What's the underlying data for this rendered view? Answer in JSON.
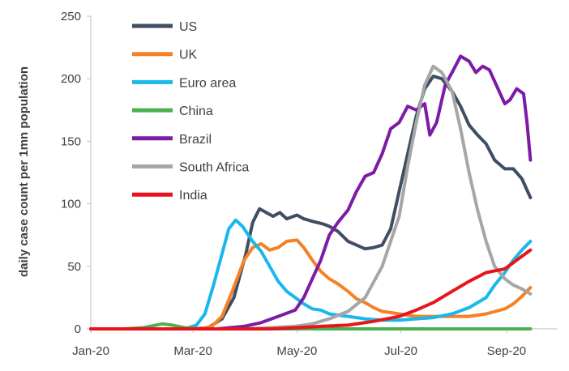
{
  "chart_data": {
    "type": "line",
    "title": "",
    "xlabel": "",
    "ylabel": "daily case count per 1mn population",
    "ylim": [
      0,
      250
    ],
    "yticks": [
      0,
      50,
      100,
      150,
      200,
      250
    ],
    "x_range": [
      "2020-01-01",
      "2020-10-01"
    ],
    "xticks": [
      {
        "date": "2020-01-01",
        "label": "Jan-20"
      },
      {
        "date": "2020-03-01",
        "label": "Mar-20"
      },
      {
        "date": "2020-05-01",
        "label": "May-20"
      },
      {
        "date": "2020-07-01",
        "label": "Jul-20"
      },
      {
        "date": "2020-09-01",
        "label": "Sep-20"
      }
    ],
    "grid": false,
    "legend_position": "top-left",
    "series": [
      {
        "name": "US",
        "color": "#3f4e63",
        "points": [
          [
            "2020-01-01",
            0
          ],
          [
            "2020-03-01",
            0
          ],
          [
            "2020-03-10",
            1
          ],
          [
            "2020-03-18",
            8
          ],
          [
            "2020-03-25",
            25
          ],
          [
            "2020-04-01",
            60
          ],
          [
            "2020-04-05",
            85
          ],
          [
            "2020-04-09",
            96
          ],
          [
            "2020-04-13",
            93
          ],
          [
            "2020-04-17",
            90
          ],
          [
            "2020-04-21",
            93
          ],
          [
            "2020-04-25",
            88
          ],
          [
            "2020-05-01",
            91
          ],
          [
            "2020-05-05",
            88
          ],
          [
            "2020-05-10",
            86
          ],
          [
            "2020-05-16",
            84
          ],
          [
            "2020-05-20",
            82
          ],
          [
            "2020-05-25",
            78
          ],
          [
            "2020-05-31",
            70
          ],
          [
            "2020-06-05",
            67
          ],
          [
            "2020-06-10",
            64
          ],
          [
            "2020-06-15",
            65
          ],
          [
            "2020-06-20",
            67
          ],
          [
            "2020-06-25",
            80
          ],
          [
            "2020-06-30",
            110
          ],
          [
            "2020-07-05",
            140
          ],
          [
            "2020-07-10",
            170
          ],
          [
            "2020-07-15",
            192
          ],
          [
            "2020-07-20",
            202
          ],
          [
            "2020-07-25",
            200
          ],
          [
            "2020-07-31",
            190
          ],
          [
            "2020-08-05",
            178
          ],
          [
            "2020-08-10",
            163
          ],
          [
            "2020-08-15",
            155
          ],
          [
            "2020-08-20",
            148
          ],
          [
            "2020-08-25",
            135
          ],
          [
            "2020-08-31",
            128
          ],
          [
            "2020-09-05",
            128
          ],
          [
            "2020-09-10",
            120
          ],
          [
            "2020-09-15",
            105
          ]
        ]
      },
      {
        "name": "UK",
        "color": "#f58125",
        "points": [
          [
            "2020-01-01",
            0
          ],
          [
            "2020-03-05",
            0
          ],
          [
            "2020-03-12",
            2
          ],
          [
            "2020-03-18",
            10
          ],
          [
            "2020-03-24",
            30
          ],
          [
            "2020-03-31",
            55
          ],
          [
            "2020-04-05",
            65
          ],
          [
            "2020-04-10",
            68
          ],
          [
            "2020-04-15",
            63
          ],
          [
            "2020-04-20",
            65
          ],
          [
            "2020-04-25",
            70
          ],
          [
            "2020-05-01",
            71
          ],
          [
            "2020-05-05",
            65
          ],
          [
            "2020-05-10",
            55
          ],
          [
            "2020-05-15",
            46
          ],
          [
            "2020-05-20",
            40
          ],
          [
            "2020-05-25",
            36
          ],
          [
            "2020-05-31",
            30
          ],
          [
            "2020-06-05",
            24
          ],
          [
            "2020-06-10",
            21
          ],
          [
            "2020-06-15",
            17
          ],
          [
            "2020-06-20",
            14
          ],
          [
            "2020-06-25",
            13
          ],
          [
            "2020-06-30",
            12
          ],
          [
            "2020-07-10",
            10
          ],
          [
            "2020-07-20",
            10
          ],
          [
            "2020-07-31",
            10
          ],
          [
            "2020-08-10",
            10
          ],
          [
            "2020-08-20",
            12
          ],
          [
            "2020-08-31",
            16
          ],
          [
            "2020-09-05",
            20
          ],
          [
            "2020-09-10",
            26
          ],
          [
            "2020-09-15",
            33
          ]
        ]
      },
      {
        "name": "Euro area",
        "color": "#19b8ea",
        "points": [
          [
            "2020-01-01",
            0
          ],
          [
            "2020-02-25",
            0
          ],
          [
            "2020-03-03",
            3
          ],
          [
            "2020-03-08",
            12
          ],
          [
            "2020-03-13",
            35
          ],
          [
            "2020-03-18",
            60
          ],
          [
            "2020-03-22",
            80
          ],
          [
            "2020-03-26",
            87
          ],
          [
            "2020-03-30",
            82
          ],
          [
            "2020-04-05",
            70
          ],
          [
            "2020-04-10",
            62
          ],
          [
            "2020-04-15",
            50
          ],
          [
            "2020-04-20",
            38
          ],
          [
            "2020-04-25",
            30
          ],
          [
            "2020-04-30",
            25
          ],
          [
            "2020-05-05",
            20
          ],
          [
            "2020-05-10",
            16
          ],
          [
            "2020-05-15",
            15
          ],
          [
            "2020-05-20",
            12
          ],
          [
            "2020-05-31",
            10
          ],
          [
            "2020-06-10",
            8
          ],
          [
            "2020-06-20",
            7
          ],
          [
            "2020-06-30",
            7
          ],
          [
            "2020-07-10",
            8
          ],
          [
            "2020-07-20",
            9
          ],
          [
            "2020-07-31",
            12
          ],
          [
            "2020-08-10",
            17
          ],
          [
            "2020-08-20",
            25
          ],
          [
            "2020-08-25",
            35
          ],
          [
            "2020-08-31",
            45
          ],
          [
            "2020-09-05",
            55
          ],
          [
            "2020-09-10",
            63
          ],
          [
            "2020-09-15",
            70
          ]
        ]
      },
      {
        "name": "China",
        "color": "#4caf50",
        "points": [
          [
            "2020-01-01",
            0
          ],
          [
            "2020-01-20",
            0
          ],
          [
            "2020-02-01",
            1
          ],
          [
            "2020-02-08",
            3
          ],
          [
            "2020-02-12",
            4
          ],
          [
            "2020-02-18",
            3
          ],
          [
            "2020-02-25",
            1
          ],
          [
            "2020-03-05",
            0
          ],
          [
            "2020-09-15",
            0
          ]
        ]
      },
      {
        "name": "Brazil",
        "color": "#7d1ba6",
        "points": [
          [
            "2020-01-01",
            0
          ],
          [
            "2020-03-15",
            0
          ],
          [
            "2020-03-31",
            2
          ],
          [
            "2020-04-10",
            5
          ],
          [
            "2020-04-20",
            10
          ],
          [
            "2020-04-30",
            15
          ],
          [
            "2020-05-05",
            25
          ],
          [
            "2020-05-10",
            40
          ],
          [
            "2020-05-15",
            55
          ],
          [
            "2020-05-20",
            75
          ],
          [
            "2020-05-25",
            85
          ],
          [
            "2020-05-31",
            95
          ],
          [
            "2020-06-05",
            110
          ],
          [
            "2020-06-10",
            122
          ],
          [
            "2020-06-15",
            125
          ],
          [
            "2020-06-20",
            140
          ],
          [
            "2020-06-25",
            160
          ],
          [
            "2020-06-30",
            165
          ],
          [
            "2020-07-05",
            178
          ],
          [
            "2020-07-10",
            175
          ],
          [
            "2020-07-15",
            180
          ],
          [
            "2020-07-18",
            155
          ],
          [
            "2020-07-22",
            165
          ],
          [
            "2020-07-27",
            195
          ],
          [
            "2020-07-31",
            205
          ],
          [
            "2020-08-05",
            218
          ],
          [
            "2020-08-10",
            214
          ],
          [
            "2020-08-14",
            205
          ],
          [
            "2020-08-18",
            210
          ],
          [
            "2020-08-22",
            207
          ],
          [
            "2020-08-26",
            195
          ],
          [
            "2020-08-31",
            180
          ],
          [
            "2020-09-03",
            183
          ],
          [
            "2020-09-07",
            192
          ],
          [
            "2020-09-11",
            188
          ],
          [
            "2020-09-13",
            165
          ],
          [
            "2020-09-15",
            135
          ]
        ]
      },
      {
        "name": "South Africa",
        "color": "#a6a6a6",
        "points": [
          [
            "2020-01-01",
            0
          ],
          [
            "2020-03-31",
            0
          ],
          [
            "2020-04-15",
            1
          ],
          [
            "2020-04-30",
            2
          ],
          [
            "2020-05-10",
            4
          ],
          [
            "2020-05-20",
            8
          ],
          [
            "2020-05-31",
            14
          ],
          [
            "2020-06-10",
            25
          ],
          [
            "2020-06-20",
            50
          ],
          [
            "2020-06-30",
            90
          ],
          [
            "2020-07-05",
            130
          ],
          [
            "2020-07-10",
            165
          ],
          [
            "2020-07-15",
            195
          ],
          [
            "2020-07-20",
            210
          ],
          [
            "2020-07-25",
            205
          ],
          [
            "2020-07-31",
            190
          ],
          [
            "2020-08-05",
            160
          ],
          [
            "2020-08-10",
            125
          ],
          [
            "2020-08-15",
            95
          ],
          [
            "2020-08-20",
            70
          ],
          [
            "2020-08-25",
            50
          ],
          [
            "2020-08-31",
            40
          ],
          [
            "2020-09-05",
            35
          ],
          [
            "2020-09-10",
            32
          ],
          [
            "2020-09-15",
            28
          ]
        ]
      },
      {
        "name": "India",
        "color": "#e8141b",
        "points": [
          [
            "2020-01-01",
            0
          ],
          [
            "2020-04-15",
            0
          ],
          [
            "2020-05-01",
            1
          ],
          [
            "2020-05-15",
            2
          ],
          [
            "2020-05-31",
            3
          ],
          [
            "2020-06-15",
            6
          ],
          [
            "2020-06-30",
            10
          ],
          [
            "2020-07-10",
            15
          ],
          [
            "2020-07-20",
            21
          ],
          [
            "2020-07-31",
            30
          ],
          [
            "2020-08-10",
            38
          ],
          [
            "2020-08-20",
            45
          ],
          [
            "2020-08-31",
            48
          ],
          [
            "2020-09-05",
            53
          ],
          [
            "2020-09-10",
            58
          ],
          [
            "2020-09-15",
            63
          ]
        ]
      }
    ]
  }
}
